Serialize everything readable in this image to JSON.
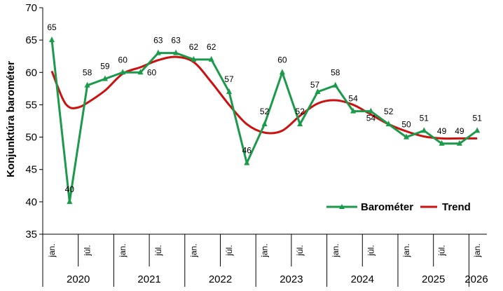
{
  "chart_data": {
    "type": "line",
    "ylabel": "Konjunktúra barométer",
    "ylim": [
      35,
      70
    ],
    "yticks": [
      35,
      40,
      45,
      50,
      55,
      60,
      65,
      70
    ],
    "x_tick_labels": [
      "jan.",
      "júl.",
      "jan.",
      "júl.",
      "jan.",
      "júl.",
      "jan.",
      "júl.",
      "jan.",
      "júl.",
      "jan.",
      "júl.",
      "jan."
    ],
    "years": [
      "2020",
      "2021",
      "2022",
      "2023",
      "2024",
      "2025",
      "2026"
    ],
    "series": [
      {
        "name": "Barométer",
        "color": "#1a9a4a",
        "marker": "triangle",
        "points": [
          {
            "x": 0,
            "y": 65,
            "label": "65"
          },
          {
            "x": 1,
            "y": 40,
            "label": "40"
          },
          {
            "x": 2,
            "y": 58,
            "label": "58"
          },
          {
            "x": 3,
            "y": 59,
            "label": "59"
          },
          {
            "x": 4,
            "y": 60,
            "label": "60"
          },
          {
            "x": 5,
            "y": 60,
            "label": "60"
          },
          {
            "x": 6,
            "y": 63,
            "label": "63"
          },
          {
            "x": 7,
            "y": 63,
            "label": "63"
          },
          {
            "x": 8,
            "y": 62,
            "label": "62"
          },
          {
            "x": 9,
            "y": 62,
            "label": "62"
          },
          {
            "x": 10,
            "y": 57,
            "label": "57"
          },
          {
            "x": 11,
            "y": 46,
            "label": "46"
          },
          {
            "x": 12,
            "y": 52,
            "label": "52"
          },
          {
            "x": 13,
            "y": 60,
            "label": "60"
          },
          {
            "x": 14,
            "y": 52,
            "label": "52"
          },
          {
            "x": 15,
            "y": 57,
            "label": "57"
          },
          {
            "x": 16,
            "y": 58,
            "label": "58"
          },
          {
            "x": 17,
            "y": 54,
            "label": "54"
          },
          {
            "x": 18,
            "y": 54,
            "label": "54"
          },
          {
            "x": 19,
            "y": 52,
            "label": "52"
          },
          {
            "x": 20,
            "y": 50,
            "label": "50"
          },
          {
            "x": 21,
            "y": 51,
            "label": "51"
          },
          {
            "x": 22,
            "y": 49,
            "label": "49"
          },
          {
            "x": 23,
            "y": 49,
            "label": "49"
          },
          {
            "x": 24,
            "y": 51,
            "label": "51"
          }
        ]
      },
      {
        "name": "Trend",
        "color": "#cc1111",
        "marker": "none",
        "points": [
          {
            "x": 0,
            "y": 60.2
          },
          {
            "x": 0.6,
            "y": 56.0
          },
          {
            "x": 1.0,
            "y": 54.6
          },
          {
            "x": 1.5,
            "y": 54.6
          },
          {
            "x": 2.0,
            "y": 55.3
          },
          {
            "x": 3.0,
            "y": 57.2
          },
          {
            "x": 4.0,
            "y": 59.8
          },
          {
            "x": 5.0,
            "y": 60.8
          },
          {
            "x": 6.0,
            "y": 61.9
          },
          {
            "x": 7.0,
            "y": 62.4
          },
          {
            "x": 8.0,
            "y": 61.6
          },
          {
            "x": 9.0,
            "y": 58.5
          },
          {
            "x": 10.0,
            "y": 55.0
          },
          {
            "x": 11.0,
            "y": 52.0
          },
          {
            "x": 12.0,
            "y": 50.7
          },
          {
            "x": 13.0,
            "y": 51.0
          },
          {
            "x": 14.0,
            "y": 53.3
          },
          {
            "x": 15.0,
            "y": 55.2
          },
          {
            "x": 16.0,
            "y": 55.7
          },
          {
            "x": 17.0,
            "y": 55.0
          },
          {
            "x": 18.0,
            "y": 53.5
          },
          {
            "x": 19.0,
            "y": 52.0
          },
          {
            "x": 20.0,
            "y": 50.9
          },
          {
            "x": 21.0,
            "y": 50.1
          },
          {
            "x": 22.0,
            "y": 49.8
          },
          {
            "x": 23.0,
            "y": 49.8
          },
          {
            "x": 24.0,
            "y": 49.8
          }
        ]
      }
    ],
    "legend": {
      "position": "bottom-right",
      "entries": [
        "Barométer",
        "Trend"
      ]
    }
  }
}
